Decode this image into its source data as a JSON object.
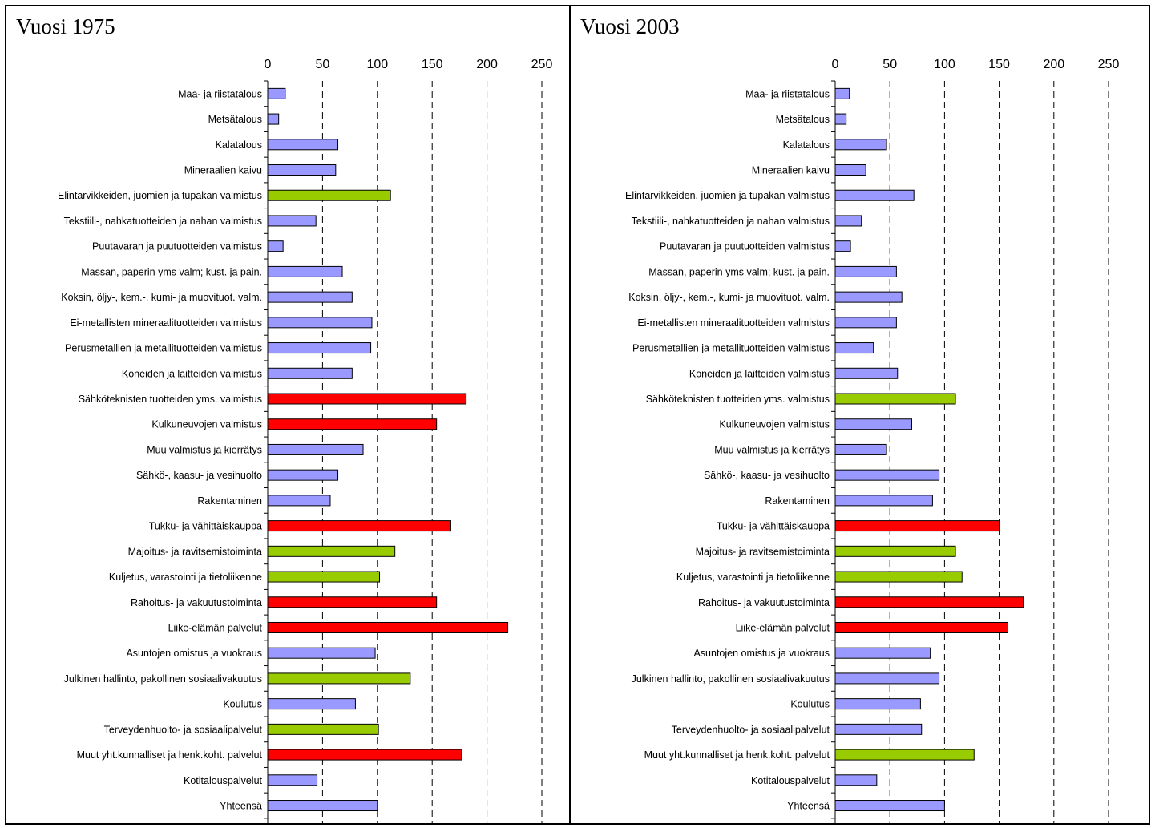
{
  "chart_data": [
    {
      "type": "bar",
      "orientation": "horizontal",
      "title": "Vuosi 1975",
      "xlim": [
        0,
        250
      ],
      "xticks": [
        0,
        50,
        100,
        150,
        200,
        250
      ],
      "grid": "vertical dashed",
      "categories": [
        "Maa- ja riistatalous",
        "Metsätalous",
        "Kalatalous",
        "Mineraalien kaivu",
        "Elintarvikkeiden, juomien ja tupakan valmistus",
        "Tekstiili-, nahkatuotteiden ja nahan valmistus",
        "Puutavaran ja puutuotteiden valmistus",
        "Massan, paperin yms valm; kust. ja pain.",
        "Koksin, öljy-, kem.-, kumi- ja muovituot. valm.",
        "Ei-metallisten mineraalituotteiden valmistus",
        "Perusmetallien ja metallituotteiden valmistus",
        "Koneiden ja laitteiden valmistus",
        "Sähköteknisten tuotteiden yms. valmistus",
        "Kulkuneuvojen valmistus",
        "Muu valmistus  ja kierrätys",
        "Sähkö-, kaasu- ja vesihuolto",
        "Rakentaminen",
        "Tukku- ja vähittäiskauppa",
        "Majoitus- ja ravitsemistoiminta",
        "Kuljetus, varastointi ja tietoliikenne",
        "Rahoitus- ja vakuutustoiminta",
        "Liike-elämän palvelut",
        "Asuntojen omistus ja vuokraus",
        "Julkinen hallinto, pakollinen sosiaalivakuutus",
        "Koulutus",
        "Terveydenhuolto- ja sosiaalipalvelut",
        "Muut yht.kunnalliset ja henk.koht. palvelut",
        "Kotitalouspalvelut",
        "Yhteensä"
      ],
      "values": [
        16,
        10,
        64,
        62,
        112,
        44,
        14,
        68,
        77,
        95,
        94,
        77,
        181,
        154,
        87,
        64,
        57,
        167,
        116,
        102,
        154,
        219,
        98,
        130,
        80,
        101,
        177,
        45,
        100
      ],
      "bar_colors": [
        "#9999ff",
        "#9999ff",
        "#9999ff",
        "#9999ff",
        "#99cc00",
        "#9999ff",
        "#9999ff",
        "#9999ff",
        "#9999ff",
        "#9999ff",
        "#9999ff",
        "#9999ff",
        "#ff0000",
        "#ff0000",
        "#9999ff",
        "#9999ff",
        "#9999ff",
        "#ff0000",
        "#99cc00",
        "#99cc00",
        "#ff0000",
        "#ff0000",
        "#9999ff",
        "#99cc00",
        "#9999ff",
        "#99cc00",
        "#ff0000",
        "#9999ff",
        "#9999ff"
      ]
    },
    {
      "type": "bar",
      "orientation": "horizontal",
      "title": "Vuosi 2003",
      "xlim": [
        0,
        250
      ],
      "xticks": [
        0,
        50,
        100,
        150,
        200,
        250
      ],
      "grid": "vertical dashed",
      "categories": [
        "Maa- ja riistatalous",
        "Metsätalous",
        "Kalatalous",
        "Mineraalien kaivu",
        "Elintarvikkeiden, juomien ja tupakan valmistus",
        "Tekstiili-, nahkatuotteiden ja nahan valmistus",
        "Puutavaran ja puutuotteiden valmistus",
        "Massan, paperin yms valm; kust. ja pain.",
        "Koksin, öljy-, kem.-, kumi- ja muovituot. valm.",
        "Ei-metallisten mineraalituotteiden valmistus",
        "Perusmetallien ja metallituotteiden valmistus",
        "Koneiden ja laitteiden valmistus",
        "Sähköteknisten tuotteiden yms. valmistus",
        "Kulkuneuvojen valmistus",
        "Muu valmistus  ja kierrätys",
        "Sähkö-, kaasu- ja vesihuolto",
        "Rakentaminen",
        "Tukku- ja vähittäiskauppa",
        "Majoitus- ja ravitsemistoiminta",
        "Kuljetus, varastointi ja tietoliikenne",
        "Rahoitus- ja vakuutustoiminta",
        "Liike-elämän palvelut",
        "Asuntojen omistus ja vuokraus",
        "Julkinen hallinto, pakollinen sosiaalivakuutus",
        "Koulutus",
        "Terveydenhuolto- ja sosiaalipalvelut",
        "Muut yht.kunnalliset ja henk.koht. palvelut",
        "Kotitalouspalvelut",
        "Yhteensä"
      ],
      "values": [
        13,
        10,
        47,
        28,
        72,
        24,
        14,
        56,
        61,
        56,
        35,
        57,
        110,
        70,
        47,
        95,
        89,
        150,
        110,
        116,
        172,
        158,
        87,
        95,
        78,
        79,
        127,
        38,
        100
      ],
      "bar_colors": [
        "#9999ff",
        "#9999ff",
        "#9999ff",
        "#9999ff",
        "#9999ff",
        "#9999ff",
        "#9999ff",
        "#9999ff",
        "#9999ff",
        "#9999ff",
        "#9999ff",
        "#9999ff",
        "#99cc00",
        "#9999ff",
        "#9999ff",
        "#9999ff",
        "#9999ff",
        "#ff0000",
        "#99cc00",
        "#99cc00",
        "#ff0000",
        "#ff0000",
        "#9999ff",
        "#9999ff",
        "#9999ff",
        "#9999ff",
        "#99cc00",
        "#9999ff",
        "#9999ff"
      ]
    }
  ]
}
